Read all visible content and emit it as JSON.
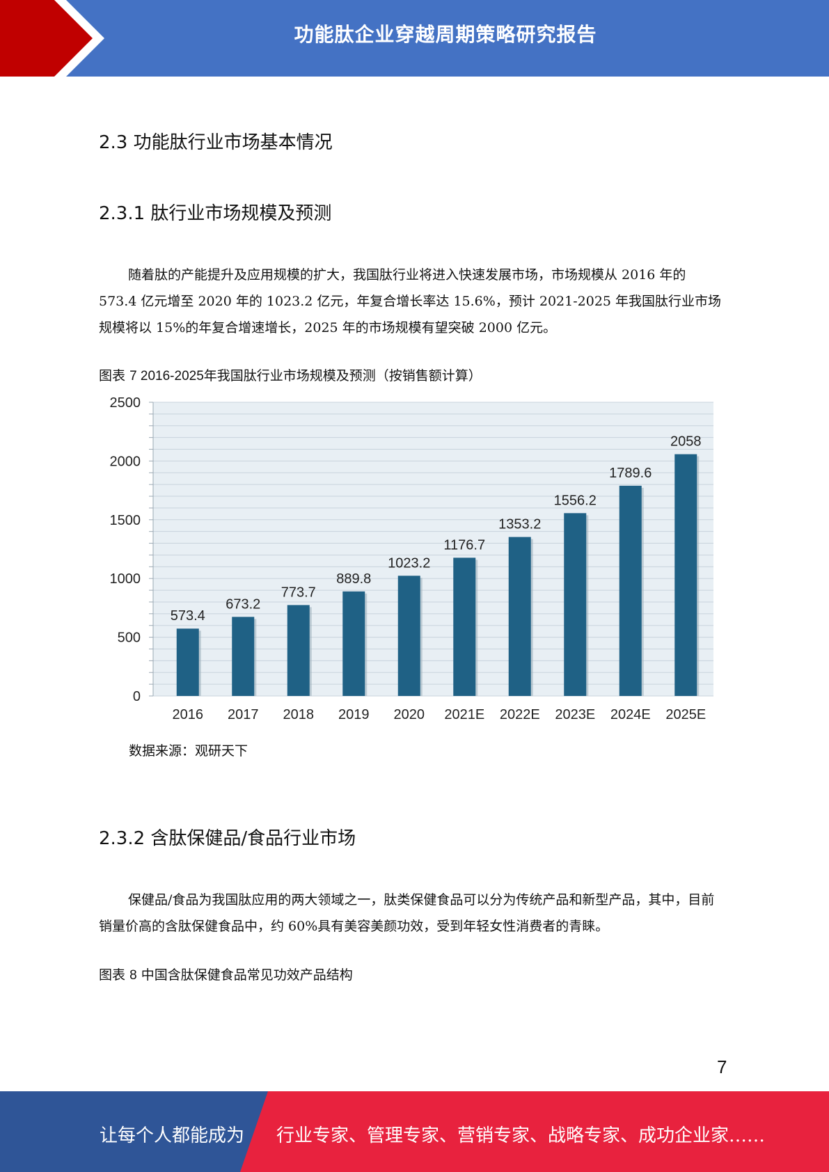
{
  "header": {
    "title": "功能肽企业穿越周期策略研究报告",
    "colors": {
      "blue": "#4472c4",
      "red": "#c00000"
    }
  },
  "section_2_3": {
    "heading": "2.3 功能肽行业市场基本情况"
  },
  "section_2_3_1": {
    "heading": "2.3.1 肽行业市场规模及预测",
    "paragraph": "随着肽的产能提升及应用规模的扩大，我国肽行业将进入快速发展市场，市场规模从 2016 年的 573.4 亿元增至 2020 年的 1023.2 亿元，年复合增长率达 15.6%，预计 2021-2025 年我国肽行业市场规模将以 15%的年复合增速增长，2025 年的市场规模有望突破 2000 亿元。",
    "figure_caption_prefix": "图表",
    "figure_caption_number": "7 2016-2025",
    "figure_caption_text": "年我国肽行业市场规模及预测（按销售额计算）",
    "source": "数据来源：观研天下"
  },
  "chart_data": {
    "type": "bar",
    "categories": [
      "2016",
      "2017",
      "2018",
      "2019",
      "2020",
      "2021E",
      "2022E",
      "2023E",
      "2024E",
      "2025E"
    ],
    "values": [
      573.4,
      673.2,
      773.7,
      889.8,
      1023.2,
      1176.7,
      1353.2,
      1556.2,
      1789.6,
      2058
    ],
    "value_labels": [
      "573.4",
      "673.2",
      "773.7",
      "889.8",
      "1023.2",
      "1176.7",
      "1353.2",
      "1556.2",
      "1789.6",
      "2058"
    ],
    "yticks": [
      "0",
      "500",
      "1000",
      "1500",
      "2000",
      "2500"
    ],
    "ylim": [
      0,
      2500
    ],
    "grid": true,
    "bar_color": "#1f6185",
    "plot_bg": "#e8eff4",
    "title": "",
    "xlabel": "",
    "ylabel": ""
  },
  "section_2_3_2": {
    "heading": "2.3.2 含肽保健品/食品行业市场",
    "paragraph": "保健品/食品为我国肽应用的两大领域之一，肽类保健食品可以分为传统产品和新型产品，其中，目前销量价高的含肽保健食品中，约 60%具有美容美颜功效，受到年轻女性消费者的青睐。",
    "figure_caption_prefix": "图表",
    "figure_caption_number": "8",
    "figure_caption_text": "中国含肽保健食品常见功效产品结构"
  },
  "page_number": "7",
  "footer": {
    "left_text": "让每个人都能成为",
    "right_text": "行业专家、管理专家、营销专家、战略专家、成功企业家……",
    "colors": {
      "blue": "#2f5597",
      "red": "#e8223e"
    }
  }
}
